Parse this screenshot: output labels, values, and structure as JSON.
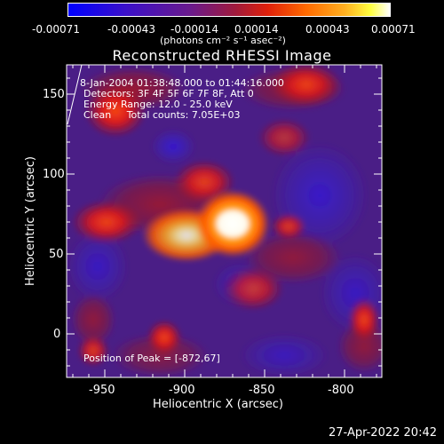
{
  "colorbar": {
    "tick_labels": [
      "-0.00071",
      "-0.00043",
      "-0.00014",
      "0.00014",
      "0.00043",
      "0.00071"
    ],
    "units": "(photons cm⁻² s⁻¹ asec⁻²)"
  },
  "title": "Reconstructed RHESSI Image",
  "info": {
    "time_range": "8-Jan-2004 01:38:48.000 to 01:44:16.000",
    "detectors": "Detectors: 3F 4F 5F 6F 7F 8F, Att 0",
    "energy": "Energy Range: 12.0 - 25.0 keV",
    "clean": "Clean     Total counts: 7.05E+03",
    "peak": "Position of Peak = [-872,67]"
  },
  "axes": {
    "x_label": "Heliocentric X (arcsec)",
    "y_label": "Heliocentric Y (arcsec)",
    "x_ticks": [
      "-950",
      "-900",
      "-850",
      "-800"
    ],
    "y_ticks": [
      "0",
      "50",
      "100",
      "150"
    ]
  },
  "footer_timestamp": "27-Apr-2022 20:42"
}
